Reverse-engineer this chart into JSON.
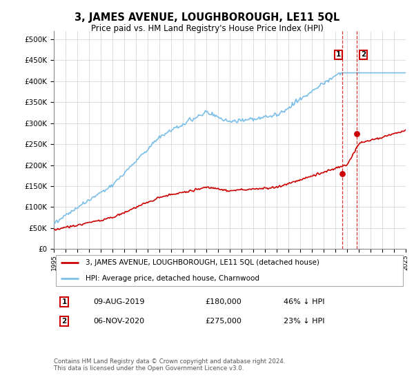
{
  "title": "3, JAMES AVENUE, LOUGHBOROUGH, LE11 5QL",
  "subtitle": "Price paid vs. HM Land Registry's House Price Index (HPI)",
  "legend_line1": "3, JAMES AVENUE, LOUGHBOROUGH, LE11 5QL (detached house)",
  "legend_line2": "HPI: Average price, detached house, Charnwood",
  "transaction1_date": "09-AUG-2019",
  "transaction1_price": "£180,000",
  "transaction1_hpi": "46% ↓ HPI",
  "transaction2_date": "06-NOV-2020",
  "transaction2_price": "£275,000",
  "transaction2_hpi": "23% ↓ HPI",
  "footer": "Contains HM Land Registry data © Crown copyright and database right 2024.\nThis data is licensed under the Open Government Licence v3.0.",
  "hpi_color": "#7bbfe8",
  "price_color": "#cc0000",
  "ylim": [
    0,
    520000
  ],
  "yticks": [
    0,
    50000,
    100000,
    150000,
    200000,
    250000,
    300000,
    350000,
    400000,
    450000,
    500000
  ],
  "year_start": 1995,
  "year_end": 2025,
  "transaction1_year": 2019.58,
  "transaction2_year": 2020.83,
  "transaction1_price_val": 180000,
  "transaction2_price_val": 275000
}
